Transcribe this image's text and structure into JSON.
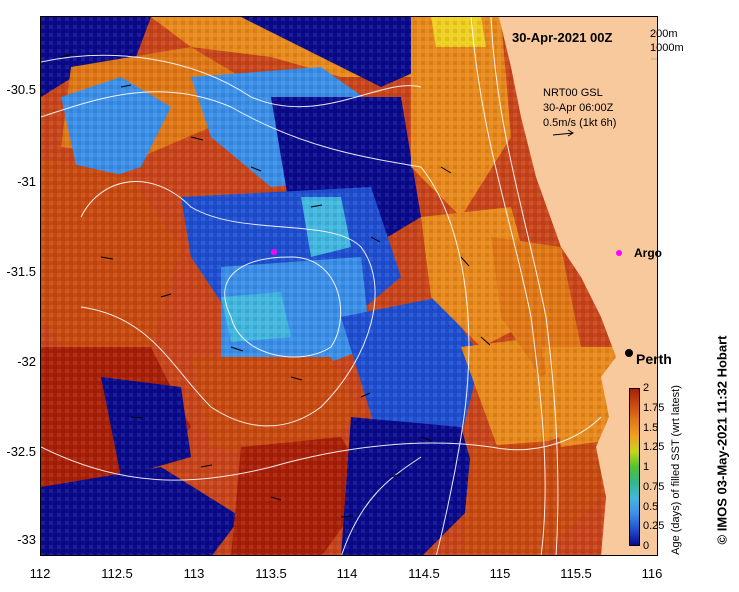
{
  "title": "30-Apr-2021 00Z",
  "depth_legend": [
    "200m",
    "1000m"
  ],
  "current_info": {
    "line1": "NRT00 GSL",
    "line2": "30-Apr 06:00Z",
    "line3": "0.5m/s (1kt 6h)"
  },
  "places": {
    "argo_label": "Argo",
    "perth_label": "Perth"
  },
  "axes": {
    "x_ticks": [
      "112",
      "112.5",
      "113",
      "113.5",
      "114",
      "114.5",
      "115",
      "115.5",
      "116"
    ],
    "y_ticks": [
      "-30.5",
      "-31",
      "-31.5",
      "-32",
      "-32.5",
      "-33"
    ],
    "lon_range": [
      112,
      116
    ],
    "lat_range": [
      -33.1,
      -30.1
    ]
  },
  "colorbar": {
    "label": "Age (days) of filled SST (wrt latest)",
    "ticks": [
      "2",
      "1.75",
      "1.5",
      "1.25",
      "1",
      "0.75",
      "0.5",
      "0.25",
      "0"
    ],
    "colors": [
      "#0a0a8c",
      "#1f4fd0",
      "#3b8fe8",
      "#42b7e0",
      "#2fb88a",
      "#52c132",
      "#c8d41c",
      "#f0a020",
      "#e07818",
      "#c84a10",
      "#a82008"
    ]
  },
  "credit": "© IMOS 03-May-2021 11:32 Hobart",
  "land_color": "#f9c99e"
}
